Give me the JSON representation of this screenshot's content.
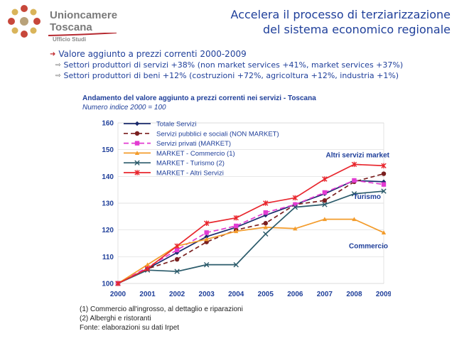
{
  "header": {
    "org_name_line1": "Unioncamere",
    "org_name_line2": "Toscana",
    "dept": "Ufficio Studi",
    "title_line1": "Accelera il processo di terziarizzazione",
    "title_line2": "del sistema economico regionale"
  },
  "bullets": {
    "main": "Valore aggiunto a prezzi correnti 2000-2009",
    "sub1": "Settori produttori di servizi +38% (non market services +41%, market services +37%)",
    "sub2": "Settori produttori di beni +12% (costruzioni +72%, agricoltura +12%, industria +1%)"
  },
  "chart_data": {
    "type": "line",
    "title": "Andamento del valore aggiunto a prezzi correnti nei servizi - Toscana",
    "subtitle": "Numero indice 2000 = 100",
    "categories": [
      "2000",
      "2001",
      "2002",
      "2003",
      "2004",
      "2005",
      "2006",
      "2007",
      "2008",
      "2009"
    ],
    "ylim": [
      100,
      160
    ],
    "yticks": [
      100,
      110,
      120,
      130,
      140,
      150,
      160
    ],
    "grid": "horizontal",
    "legend_position": "top-left",
    "series": [
      {
        "name": "Totale Servizi",
        "color": "#1a2a6c",
        "marker": "diamond",
        "dash": "",
        "values": [
          100,
          105.5,
          111.5,
          117.5,
          121,
          125.5,
          129.5,
          133.5,
          138.5,
          138
        ]
      },
      {
        "name": "Servizi pubblici e sociali (NON MARKET)",
        "color": "#7a1f1f",
        "marker": "circle",
        "dash": "6,4",
        "values": [
          100,
          105.5,
          109,
          115.5,
          120,
          122.5,
          129.5,
          131,
          138,
          141
        ]
      },
      {
        "name": "Servizi privati (MARKET)",
        "color": "#e23bd2",
        "marker": "square",
        "dash": "7,4",
        "values": [
          100,
          106,
          112.5,
          119,
          121.5,
          126.5,
          129.5,
          134,
          138.5,
          137
        ]
      },
      {
        "name": "MARKET - Commercio (1)",
        "color": "#f39c2c",
        "marker": "triangle",
        "dash": "",
        "values": [
          100,
          107,
          114,
          116.5,
          119.5,
          121,
          120.5,
          124,
          124,
          119
        ]
      },
      {
        "name": "MARKET - Turismo (2)",
        "color": "#2a5a6a",
        "marker": "x",
        "dash": "",
        "values": [
          100,
          105,
          104.5,
          107,
          107,
          118.5,
          128.5,
          129.5,
          133.5,
          134.5
        ]
      },
      {
        "name": "MARKET - Altri Servizi",
        "color": "#e8262d",
        "marker": "star",
        "dash": "",
        "values": [
          100,
          105.5,
          114,
          122.5,
          124.5,
          130,
          132,
          139,
          144.5,
          144
        ]
      }
    ],
    "annotations": [
      {
        "text": "Altri servizi market",
        "near": "MARKET - Altri Servizi"
      },
      {
        "text": "Turismo",
        "near": "MARKET - Turismo (2)"
      },
      {
        "text": "Commercio",
        "near": "MARKET - Commercio (1)"
      }
    ]
  },
  "footnotes": [
    "(1) Commercio all'ingrosso, al dettaglio e riparazioni",
    "(2) Alberghi e ristoranti",
    "Fonte: elaborazioni su dati Irpet"
  ]
}
